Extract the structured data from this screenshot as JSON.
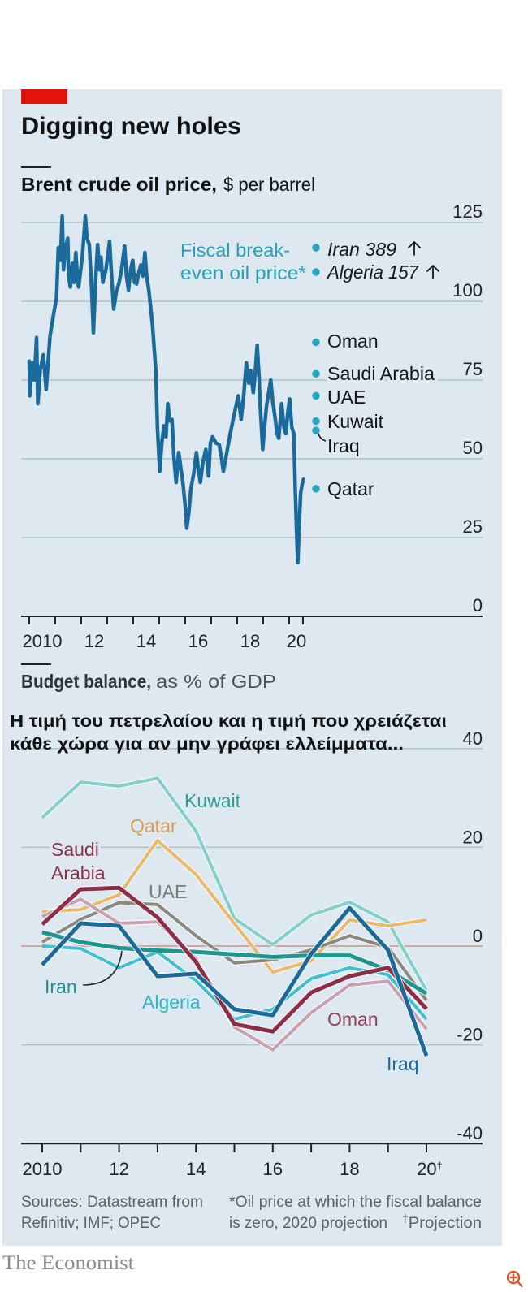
{
  "header": {
    "title": "Digging new holes",
    "accent_color": "#e3120b"
  },
  "overlay_caption": {
    "line1": "Η τιμή του πετρελαίου και η τιμή που χρειάζεται",
    "line2": "κάθε χώρα για αν μην γράφει ελλείμματα..."
  },
  "chart_data": [
    {
      "type": "line",
      "title": "Brent crude oil price,",
      "unit": "$ per barrel",
      "xlabel": "",
      "ylabel": "$ per barrel",
      "xlim": [
        2010,
        2020.55
      ],
      "ylim": [
        0,
        125
      ],
      "grid": true,
      "yticks": [
        0,
        25,
        50,
        75,
        100,
        125
      ],
      "ytick_labels": [
        "0",
        "25",
        "50",
        "75",
        "100",
        "125"
      ],
      "xticks": [
        2010,
        2011,
        2012,
        2013,
        2014,
        2015,
        2016,
        2017,
        2018,
        2019,
        2020,
        2020.53
      ],
      "xtick_labels": [
        {
          "at": 2010.5,
          "text": "2010"
        },
        {
          "at": 2012.5,
          "text": "12"
        },
        {
          "at": 2014.5,
          "text": "14"
        },
        {
          "at": 2016.5,
          "text": "16"
        },
        {
          "at": 2018.5,
          "text": "18"
        },
        {
          "at": 2020.28,
          "text": "20"
        }
      ],
      "series": [
        {
          "name": "Brent crude oil price",
          "color": "#1a6b9b",
          "points": [
            [
              2010.0,
              81
            ],
            [
              2010.02,
              70
            ],
            [
              2010.08,
              76
            ],
            [
              2010.13,
              80.5
            ],
            [
              2010.2,
              75
            ],
            [
              2010.28,
              88.5
            ],
            [
              2010.33,
              67.5
            ],
            [
              2010.42,
              78
            ],
            [
              2010.54,
              83
            ],
            [
              2010.65,
              72
            ],
            [
              2010.8,
              89
            ],
            [
              2010.96,
              97
            ],
            [
              2011.05,
              101
            ],
            [
              2011.12,
              117
            ],
            [
              2011.2,
              113
            ],
            [
              2011.27,
              127
            ],
            [
              2011.32,
              110
            ],
            [
              2011.4,
              117
            ],
            [
              2011.48,
              120
            ],
            [
              2011.52,
              108
            ],
            [
              2011.58,
              104.5
            ],
            [
              2011.66,
              112
            ],
            [
              2011.72,
              106
            ],
            [
              2011.79,
              115.5
            ],
            [
              2011.85,
              108
            ],
            [
              2011.9,
              104.5
            ],
            [
              2011.98,
              110
            ],
            [
              2012.05,
              115
            ],
            [
              2012.16,
              127
            ],
            [
              2012.22,
              120
            ],
            [
              2012.31,
              118
            ],
            [
              2012.4,
              104
            ],
            [
              2012.47,
              90
            ],
            [
              2012.55,
              106
            ],
            [
              2012.63,
              118
            ],
            [
              2012.7,
              110
            ],
            [
              2012.76,
              114
            ],
            [
              2012.83,
              106
            ],
            [
              2012.95,
              110
            ],
            [
              2013.09,
              119
            ],
            [
              2013.17,
              108
            ],
            [
              2013.25,
              97.5
            ],
            [
              2013.35,
              103
            ],
            [
              2013.46,
              106
            ],
            [
              2013.55,
              110
            ],
            [
              2013.67,
              117.5
            ],
            [
              2013.74,
              108
            ],
            [
              2013.82,
              103.5
            ],
            [
              2013.9,
              110
            ],
            [
              2013.98,
              113
            ],
            [
              2014.05,
              106
            ],
            [
              2014.13,
              105.5
            ],
            [
              2014.21,
              109
            ],
            [
              2014.29,
              111.5
            ],
            [
              2014.37,
              108
            ],
            [
              2014.45,
              115.5
            ],
            [
              2014.52,
              108
            ],
            [
              2014.6,
              103.5
            ],
            [
              2014.74,
              92.5
            ],
            [
              2014.87,
              78
            ],
            [
              2014.93,
              60
            ],
            [
              2015.02,
              46
            ],
            [
              2015.1,
              55
            ],
            [
              2015.18,
              60.5
            ],
            [
              2015.26,
              57
            ],
            [
              2015.33,
              67.5
            ],
            [
              2015.41,
              62
            ],
            [
              2015.49,
              62.5
            ],
            [
              2015.57,
              50
            ],
            [
              2015.65,
              42.5
            ],
            [
              2015.75,
              52
            ],
            [
              2015.83,
              47
            ],
            [
              2015.91,
              42.5
            ],
            [
              2016.0,
              35
            ],
            [
              2016.06,
              28
            ],
            [
              2016.14,
              33
            ],
            [
              2016.22,
              40.5
            ],
            [
              2016.32,
              45
            ],
            [
              2016.43,
              52
            ],
            [
              2016.52,
              46
            ],
            [
              2016.58,
              42.5
            ],
            [
              2016.68,
              49
            ],
            [
              2016.79,
              53
            ],
            [
              2016.9,
              44.5
            ],
            [
              2016.97,
              55
            ],
            [
              2017.05,
              57
            ],
            [
              2017.18,
              55
            ],
            [
              2017.31,
              54.5
            ],
            [
              2017.4,
              50
            ],
            [
              2017.47,
              46
            ],
            [
              2017.6,
              52
            ],
            [
              2017.73,
              58
            ],
            [
              2017.88,
              64
            ],
            [
              2018.04,
              70
            ],
            [
              2018.15,
              62.5
            ],
            [
              2018.25,
              70
            ],
            [
              2018.35,
              80.5
            ],
            [
              2018.45,
              74
            ],
            [
              2018.52,
              78
            ],
            [
              2018.62,
              71
            ],
            [
              2018.7,
              78
            ],
            [
              2018.77,
              86
            ],
            [
              2018.84,
              76
            ],
            [
              2018.88,
              67.5
            ],
            [
              2018.98,
              53
            ],
            [
              2019.05,
              60
            ],
            [
              2019.13,
              67
            ],
            [
              2019.29,
              75
            ],
            [
              2019.37,
              68
            ],
            [
              2019.45,
              63.5
            ],
            [
              2019.53,
              58
            ],
            [
              2019.6,
              56.5
            ],
            [
              2019.71,
              67.5
            ],
            [
              2019.8,
              60
            ],
            [
              2019.87,
              58
            ],
            [
              2019.95,
              65
            ],
            [
              2020.02,
              69
            ],
            [
              2020.1,
              60
            ],
            [
              2020.18,
              58
            ],
            [
              2020.23,
              41
            ],
            [
              2020.28,
              28
            ],
            [
              2020.33,
              17
            ],
            [
              2020.38,
              28
            ],
            [
              2020.44,
              39
            ],
            [
              2020.5,
              42
            ],
            [
              2020.55,
              43.5
            ]
          ]
        }
      ],
      "breakeven": {
        "title_lines": [
          "Fiscal break-",
          "even oil price*"
        ],
        "color": "#27a0b5",
        "dot_color": "#24a6c1",
        "items": [
          {
            "country": "Iran",
            "value": 389,
            "off_scale": true
          },
          {
            "country": "Algeria",
            "value": 157,
            "off_scale": true
          },
          {
            "country": "Oman",
            "value": 87
          },
          {
            "country": "Saudi Arabia",
            "value": 77
          },
          {
            "country": "UAE",
            "value": 70
          },
          {
            "country": "Kuwait",
            "value": 62
          },
          {
            "country": "Iraq",
            "value": 59
          },
          {
            "country": "Qatar",
            "value": 40.5
          }
        ]
      }
    },
    {
      "type": "line",
      "title": "Budget balance,",
      "unit": "as % of GDP",
      "xlabel": "",
      "ylabel": "% of GDP",
      "x": [
        2010,
        2011,
        2012,
        2013,
        2014,
        2015,
        2016,
        2017,
        2018,
        2019,
        2020
      ],
      "xlim": [
        2010,
        2020
      ],
      "ylim": [
        -40,
        40
      ],
      "grid": true,
      "yticks": [
        -40,
        -20,
        0,
        20,
        40
      ],
      "ytick_labels": [
        "-40",
        "-20",
        "0",
        "20",
        "40"
      ],
      "xtick_labels": [
        {
          "at": 2010,
          "text": "2010"
        },
        {
          "at": 2012,
          "text": "12"
        },
        {
          "at": 2014,
          "text": "14"
        },
        {
          "at": 2016,
          "text": "16"
        },
        {
          "at": 2018,
          "text": "18"
        },
        {
          "at": 2020,
          "text": "20",
          "sup": "†"
        }
      ],
      "zero_line_color": "#d98a86",
      "series": [
        {
          "name": "Kuwait",
          "color": "#82d0c8",
          "label_color": "#2e9d97",
          "values": [
            26.0,
            33.2,
            32.4,
            34.0,
            23.3,
            5.6,
            0.3,
            6.3,
            8.9,
            4.9,
            -9.0
          ]
        },
        {
          "name": "Qatar",
          "color": "#eab96b",
          "label_color": "#d6a04e",
          "values": [
            6.9,
            7.4,
            10.4,
            21.4,
            14.5,
            4.6,
            -5.3,
            -3.0,
            5.3,
            4.1,
            5.3
          ]
        },
        {
          "name": "UAE",
          "color": "#8b897f",
          "label_color": "#7b7b74",
          "values": [
            0.8,
            5.4,
            8.8,
            8.4,
            2.1,
            -3.4,
            -2.8,
            -0.8,
            2.1,
            -0.3,
            -11.0
          ]
        },
        {
          "name": "Oman",
          "color": "#c7a1ad",
          "label_color": "#933f55",
          "values": [
            6.0,
            9.5,
            4.6,
            4.9,
            -2.5,
            -16.4,
            -21.0,
            -13.5,
            -7.9,
            -7.1,
            -16.8
          ]
        },
        {
          "name": "Algeria",
          "color": "#3fbfd0",
          "label_color": "#2db3c7",
          "values": [
            0.0,
            -0.5,
            -4.4,
            -1.2,
            -7.0,
            -14.8,
            -12.8,
            -6.6,
            -4.4,
            -5.8,
            -14.8
          ]
        },
        {
          "name": "Iran",
          "color": "#1f9590",
          "label_color": "#1f8f8b",
          "values": [
            2.8,
            0.8,
            -0.4,
            -0.9,
            -1.2,
            -1.7,
            -2.2,
            -1.9,
            -1.9,
            -4.9,
            -9.6
          ]
        },
        {
          "name": "Saudi Arabia",
          "label_lines": [
            "Saudi",
            "Arabia"
          ],
          "color": "#8c2f46",
          "label_color": "#8c2f46",
          "values": [
            4.4,
            11.5,
            11.8,
            5.8,
            -3.2,
            -15.8,
            -17.3,
            -9.4,
            -6.1,
            -4.4,
            -12.7
          ]
        },
        {
          "name": "Iraq",
          "color": "#1b6a9a",
          "label_color": "#1b6a9a",
          "values": [
            -3.8,
            4.6,
            4.1,
            -6.1,
            -5.6,
            -12.8,
            -14.0,
            -1.6,
            7.7,
            -0.8,
            -22.2
          ]
        }
      ]
    }
  ],
  "footer": {
    "sources": [
      "Sources: Datastream from",
      "Refinitiv; IMF; OPEC"
    ],
    "notes": [
      "*Oil price at which the fiscal balance",
      "is zero, 2020 projection"
    ],
    "projection_mark": "†",
    "projection_text": "Projection"
  },
  "brand": "The Economist",
  "icons": {
    "zoom": "zoom-in-icon",
    "off_scale_arrow": "arrow-up-icon"
  }
}
